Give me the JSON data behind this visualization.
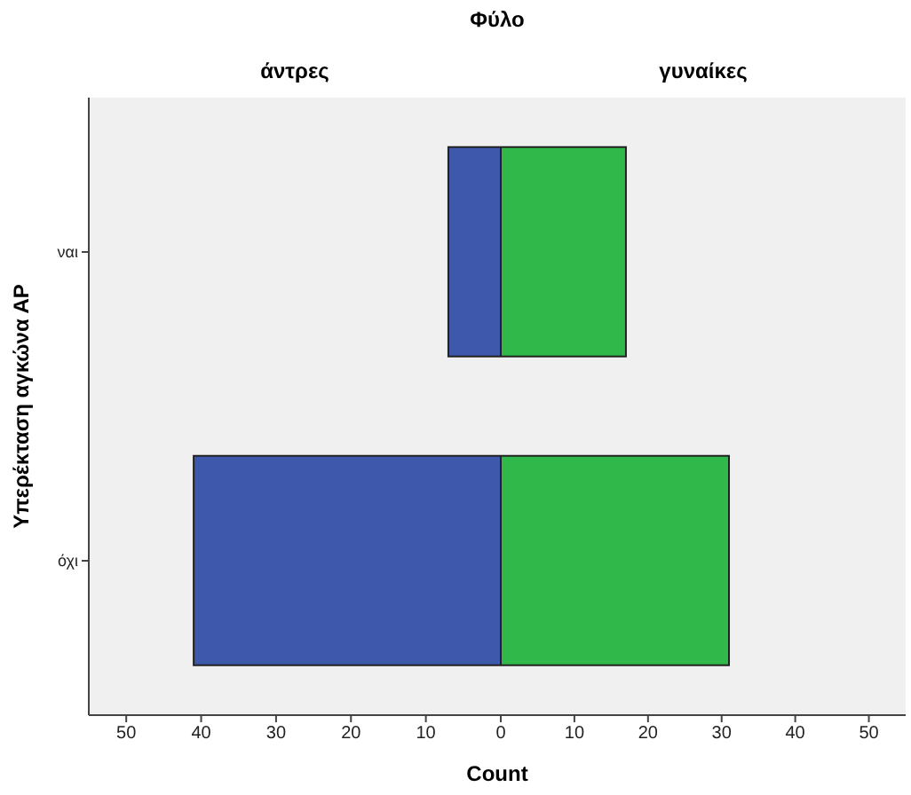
{
  "chart_data": [
    {
      "type": "bar",
      "orientation": "horizontal",
      "title": "Φύλο",
      "subtitle": "άντρες",
      "ylabel": "Υπερέκταση αγκώνα ΑΡ",
      "xlabel": "Count",
      "categories": [
        "ναι",
        "όχι"
      ],
      "values": [
        7,
        41
      ],
      "color": "#3e58ac",
      "xlim": [
        55,
        0
      ],
      "xticks": [
        50,
        40,
        30,
        20,
        10
      ],
      "grid": false,
      "legend": false
    },
    {
      "type": "bar",
      "orientation": "horizontal",
      "subtitle": "γυναίκες",
      "values": [
        17,
        31
      ],
      "color": "#30b84a",
      "xlim": [
        0,
        55
      ],
      "xticks": [
        0,
        10,
        20,
        30,
        40,
        50
      ],
      "grid": false,
      "legend": false,
      "tick_labels": "x"
    }
  ]
}
